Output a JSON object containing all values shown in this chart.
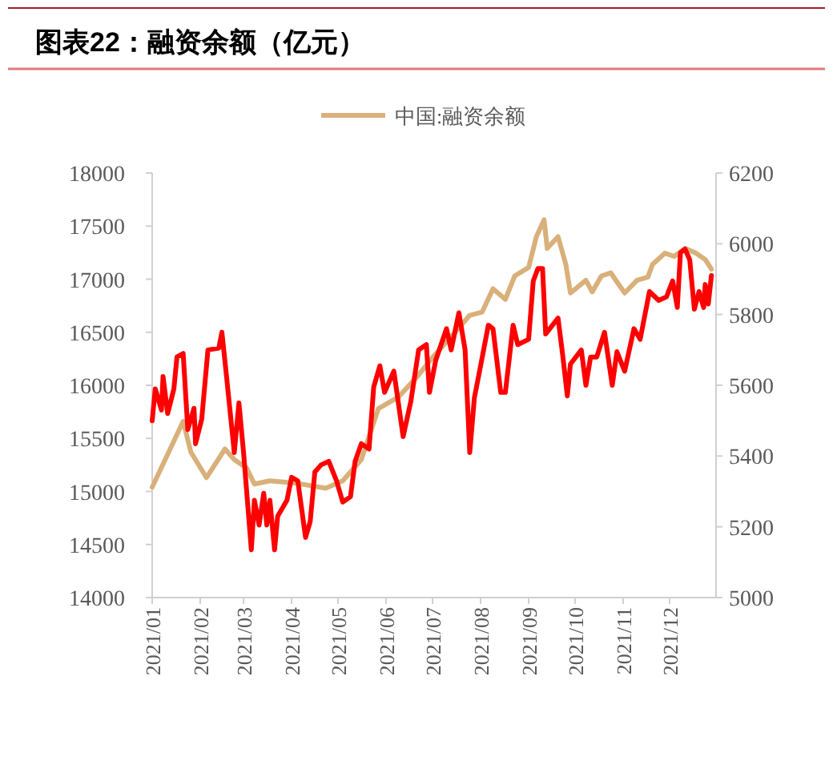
{
  "chart_data": {
    "type": "line",
    "title": "图表22：融资余额（亿元）",
    "xlim": [
      "2021-01-01",
      "2021-12-31"
    ],
    "xticks": [
      {
        "value": "2021-01-01",
        "label": "2021/01"
      },
      {
        "value": "2021-02-01",
        "label": "2021/02"
      },
      {
        "value": "2021-03-01",
        "label": "2021/03"
      },
      {
        "value": "2021-04-01",
        "label": "2021/04"
      },
      {
        "value": "2021-05-01",
        "label": "2021/05"
      },
      {
        "value": "2021-06-01",
        "label": "2021/06"
      },
      {
        "value": "2021-07-01",
        "label": "2021/07"
      },
      {
        "value": "2021-08-01",
        "label": "2021/08"
      },
      {
        "value": "2021-09-01",
        "label": "2021/09"
      },
      {
        "value": "2021-10-01",
        "label": "2021/10"
      },
      {
        "value": "2021-11-01",
        "label": "2021/11"
      },
      {
        "value": "2021-12-01",
        "label": "2021/12"
      }
    ],
    "ylim": [
      14000,
      18000
    ],
    "yticks": [
      14000,
      14500,
      15000,
      15500,
      16000,
      16500,
      17000,
      17500,
      18000
    ],
    "y2lim": [
      5000,
      6200
    ],
    "y2ticks": [
      5000,
      5200,
      5400,
      5600,
      5800,
      6000,
      6200
    ],
    "legend": "top",
    "grid": false,
    "series": [
      {
        "name": "中国:融资余额",
        "color": "#d9b07a",
        "x": [
          "2021-01-01",
          "2021-01-21",
          "2021-01-26",
          "2021-02-05",
          "2021-02-17",
          "2021-02-23",
          "2021-03-03",
          "2021-03-08",
          "2021-03-18",
          "2021-04-03",
          "2021-04-23",
          "2021-05-04",
          "2021-05-16",
          "2021-05-27",
          "2021-06-09",
          "2021-06-21",
          "2021-07-02",
          "2021-07-15",
          "2021-07-25",
          "2021-08-02",
          "2021-08-09",
          "2021-08-17",
          "2021-08-23",
          "2021-09-01",
          "2021-09-06",
          "2021-09-11",
          "2021-09-13",
          "2021-09-20",
          "2021-09-25",
          "2021-09-28",
          "2021-10-08",
          "2021-10-12",
          "2021-10-18",
          "2021-10-24",
          "2021-11-02",
          "2021-11-10",
          "2021-11-17",
          "2021-11-20",
          "2021-11-28",
          "2021-12-04",
          "2021-12-11",
          "2021-12-18",
          "2021-12-24",
          "2021-12-28"
        ],
        "values": [
          15040,
          15660,
          15370,
          15130,
          15400,
          15300,
          15220,
          15070,
          15100,
          15080,
          15030,
          15100,
          15300,
          15780,
          15890,
          16080,
          16280,
          16490,
          16660,
          16690,
          16910,
          16810,
          17030,
          17110,
          17400,
          17560,
          17290,
          17400,
          17140,
          16870,
          16990,
          16880,
          17030,
          17060,
          16870,
          16990,
          17020,
          17140,
          17245,
          17215,
          17290,
          17245,
          17185,
          17095
        ]
      },
      {
        "color": "#ff0000",
        "axis": "y2",
        "x": [
          "2021-01-01",
          "2021-01-03",
          "2021-01-07",
          "2021-01-08",
          "2021-01-11",
          "2021-01-15",
          "2021-01-17",
          "2021-01-21",
          "2021-01-24",
          "2021-01-28",
          "2021-01-29",
          "2021-02-02",
          "2021-02-06",
          "2021-02-13",
          "2021-02-15",
          "2021-02-18",
          "2021-02-23",
          "2021-02-26",
          "2021-03-01",
          "2021-03-06",
          "2021-03-08",
          "2021-03-11",
          "2021-03-14",
          "2021-03-16",
          "2021-03-18",
          "2021-03-21",
          "2021-03-23",
          "2021-03-29",
          "2021-04-01",
          "2021-04-05",
          "2021-04-10",
          "2021-04-13",
          "2021-04-16",
          "2021-04-20",
          "2021-04-25",
          "2021-04-30",
          "2021-05-04",
          "2021-05-09",
          "2021-05-12",
          "2021-05-16",
          "2021-05-21",
          "2021-05-24",
          "2021-05-28",
          "2021-05-31",
          "2021-06-06",
          "2021-06-12",
          "2021-06-17",
          "2021-06-22",
          "2021-06-27",
          "2021-06-29",
          "2021-07-03",
          "2021-07-10",
          "2021-07-13",
          "2021-07-18",
          "2021-07-22",
          "2021-07-25",
          "2021-07-28",
          "2021-08-01",
          "2021-08-06",
          "2021-08-09",
          "2021-08-14",
          "2021-08-17",
          "2021-08-22",
          "2021-08-25",
          "2021-09-01",
          "2021-09-04",
          "2021-09-07",
          "2021-09-10",
          "2021-09-12",
          "2021-09-20",
          "2021-09-23",
          "2021-09-26",
          "2021-09-28",
          "2021-10-05",
          "2021-10-08",
          "2021-10-11",
          "2021-10-15",
          "2021-10-20",
          "2021-10-25",
          "2021-10-28",
          "2021-11-02",
          "2021-11-08",
          "2021-11-12",
          "2021-11-18",
          "2021-11-24",
          "2021-11-29",
          "2021-12-03",
          "2021-12-06",
          "2021-12-08",
          "2021-12-11",
          "2021-12-14",
          "2021-12-17",
          "2021-12-20",
          "2021-12-23",
          "2021-12-24",
          "2021-12-26",
          "2021-12-28"
        ],
        "values": [
          5500,
          5590,
          5530,
          5625,
          5520,
          5590,
          5680,
          5690,
          5475,
          5535,
          5435,
          5505,
          5700,
          5705,
          5750,
          5625,
          5410,
          5550,
          5410,
          5135,
          5275,
          5205,
          5295,
          5205,
          5275,
          5135,
          5230,
          5275,
          5340,
          5330,
          5170,
          5215,
          5355,
          5375,
          5385,
          5330,
          5270,
          5285,
          5385,
          5435,
          5420,
          5595,
          5655,
          5580,
          5640,
          5455,
          5555,
          5700,
          5715,
          5580,
          5670,
          5760,
          5700,
          5805,
          5700,
          5410,
          5565,
          5655,
          5770,
          5760,
          5580,
          5580,
          5770,
          5715,
          5730,
          5895,
          5930,
          5930,
          5745,
          5790,
          5685,
          5570,
          5660,
          5700,
          5600,
          5680,
          5680,
          5750,
          5600,
          5695,
          5640,
          5760,
          5730,
          5865,
          5840,
          5850,
          5895,
          5820,
          5975,
          5985,
          5955,
          5815,
          5865,
          5820,
          5885,
          5830,
          5910
        ]
      }
    ]
  }
}
